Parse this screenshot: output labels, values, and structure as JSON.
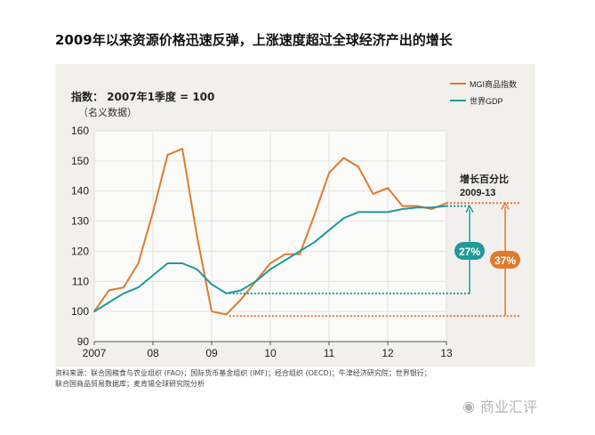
{
  "title": "2009年以来资源价格迅速反弹，上涨速度超过全球经济产出的增长",
  "y_label": "指数： 2007年1季度 = 100",
  "y_sublabel": "（名义数据）",
  "source_line1": "资料来源：联合国粮食与农业组织 (FAO)；国际货币基金组织 (IMF)；经合组织 (OECD)；牛津经济研究院；世界银行；",
  "source_line2": "联合国商品贸易数据库；麦肯锡全球研究院分析",
  "watermark": "商业汇评",
  "colors": {
    "mgi": "#e07a2e",
    "gdp": "#1f9a9a",
    "panel": "#f1f0ec",
    "grid": "#ffffff"
  },
  "chart_data": {
    "type": "line",
    "title": "2009年以来资源价格迅速反弹，上涨速度超过全球经济产出的增长",
    "ylabel": "指数： 2007年1季度 = 100 （名义数据）",
    "ylim": [
      90,
      160
    ],
    "yticks": [
      90,
      100,
      110,
      120,
      130,
      140,
      150,
      160
    ],
    "xlim": [
      2007.0,
      2013.0
    ],
    "xticks": [
      {
        "x": 2007,
        "label": "2007"
      },
      {
        "x": 2008,
        "label": "08"
      },
      {
        "x": 2009,
        "label": "09"
      },
      {
        "x": 2010,
        "label": "10"
      },
      {
        "x": 2011,
        "label": "11"
      },
      {
        "x": 2012,
        "label": "12"
      },
      {
        "x": 2013,
        "label": "13"
      }
    ],
    "grid": true,
    "legend_position": "top-right",
    "series": [
      {
        "name": "MGI商品指数",
        "color": "#e07a2e",
        "x": [
          2007.0,
          2007.25,
          2007.5,
          2007.75,
          2008.0,
          2008.25,
          2008.5,
          2008.75,
          2009.0,
          2009.25,
          2009.5,
          2009.75,
          2010.0,
          2010.25,
          2010.5,
          2010.75,
          2011.0,
          2011.25,
          2011.5,
          2011.75,
          2012.0,
          2012.25,
          2012.5,
          2012.75,
          2013.0
        ],
        "y": [
          100,
          107,
          108,
          116,
          133,
          152,
          154,
          125,
          100,
          99,
          104,
          110,
          116,
          119,
          119,
          132,
          146,
          151,
          148,
          139,
          141,
          135,
          135,
          134,
          136
        ]
      },
      {
        "name": "世界GDP",
        "color": "#1f9a9a",
        "x": [
          2007.0,
          2007.25,
          2007.5,
          2007.75,
          2008.0,
          2008.25,
          2008.5,
          2008.75,
          2009.0,
          2009.25,
          2009.5,
          2009.75,
          2010.0,
          2010.25,
          2010.5,
          2010.75,
          2011.0,
          2011.25,
          2011.5,
          2011.75,
          2012.0,
          2012.25,
          2012.5,
          2012.75,
          2013.0
        ],
        "y": [
          100,
          103,
          106,
          108,
          112,
          116,
          116,
          114,
          109,
          106,
          107,
          110,
          114,
          117,
          120,
          123,
          127,
          131,
          133,
          133,
          133,
          134,
          134.5,
          134.5,
          135
        ]
      }
    ],
    "annotations": {
      "header": "增长百分比",
      "period": "2009-13",
      "gdp_growth": "27%",
      "mgi_growth": "37%",
      "gdp_from": 106,
      "gdp_to": 135,
      "mgi_from": 98.5,
      "mgi_to": 136
    }
  }
}
